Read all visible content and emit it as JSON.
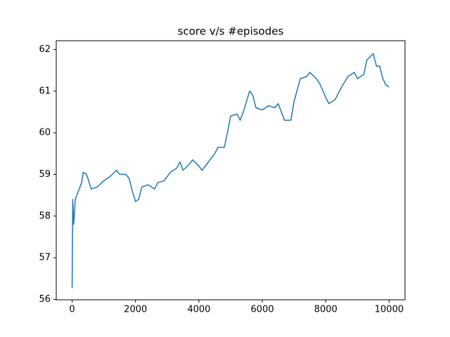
{
  "chart_data": {
    "type": "line",
    "title": "score v/s #episodes",
    "x": [
      0,
      10,
      20,
      50,
      100,
      200,
      300,
      350,
      450,
      500,
      600,
      800,
      1000,
      1200,
      1400,
      1500,
      1700,
      1800,
      1900,
      2000,
      2100,
      2200,
      2400,
      2600,
      2700,
      2900,
      3100,
      3300,
      3400,
      3500,
      3700,
      3800,
      4000,
      4100,
      4300,
      4500,
      4600,
      4800,
      4900,
      5000,
      5200,
      5300,
      5400,
      5500,
      5600,
      5700,
      5800,
      6000,
      6200,
      6400,
      6500,
      6600,
      6700,
      6900,
      7000,
      7200,
      7400,
      7500,
      7700,
      7800,
      8000,
      8100,
      8300,
      8500,
      8700,
      8900,
      9000,
      9200,
      9300,
      9500,
      9600,
      9700,
      9800,
      9900,
      10000
    ],
    "series": [
      {
        "color": "#1f77b4",
        "values": [
          56.27,
          57.3,
          58.4,
          57.8,
          58.4,
          58.6,
          58.8,
          59.05,
          59.0,
          58.9,
          58.65,
          58.7,
          58.85,
          58.95,
          59.1,
          59.0,
          59.0,
          58.9,
          58.6,
          58.35,
          58.4,
          58.7,
          58.75,
          58.65,
          58.8,
          58.85,
          59.05,
          59.15,
          59.3,
          59.1,
          59.25,
          59.35,
          59.2,
          59.1,
          59.3,
          59.5,
          59.65,
          59.65,
          60.0,
          60.4,
          60.45,
          60.3,
          60.5,
          60.75,
          61.0,
          60.9,
          60.6,
          60.55,
          60.65,
          60.6,
          60.7,
          60.5,
          60.3,
          60.3,
          60.75,
          61.3,
          61.35,
          61.45,
          61.3,
          61.2,
          60.85,
          60.7,
          60.8,
          61.1,
          61.35,
          61.45,
          61.3,
          61.4,
          61.75,
          61.9,
          61.6,
          61.6,
          61.3,
          61.15,
          61.1
        ]
      }
    ],
    "xlim": [
      -500,
      10500
    ],
    "ylim": [
      55.99,
      62.21
    ],
    "xticks": [
      0,
      2000,
      4000,
      6000,
      8000,
      10000
    ],
    "yticks": [
      56,
      57,
      58,
      59,
      60,
      61,
      62
    ]
  }
}
